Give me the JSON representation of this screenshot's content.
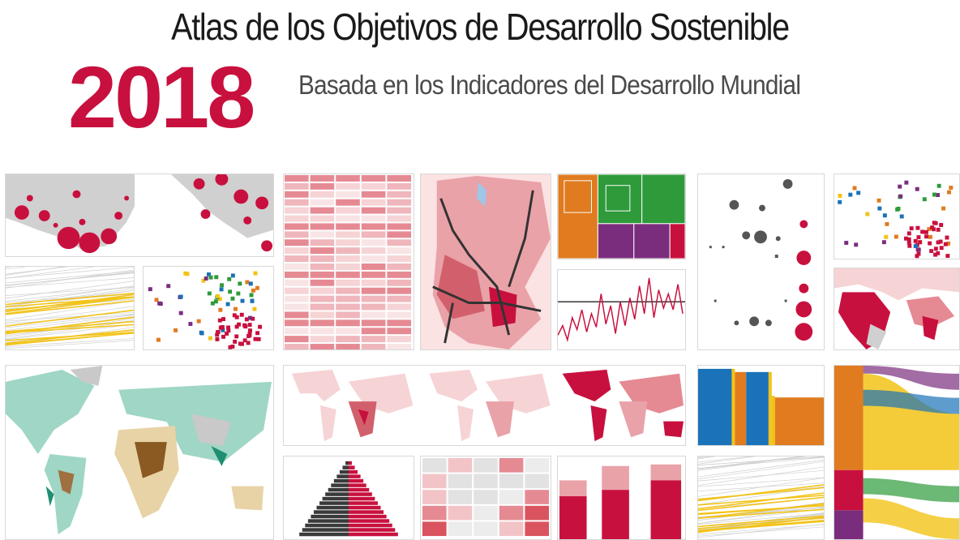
{
  "header": {
    "title": "Atlas de los Objetivos de Desarrollo Sostenible",
    "year": "2018",
    "subtitle": "Basada en los Indicadores del Desarrollo Mundial"
  },
  "colors": {
    "accent": "#c8103e",
    "title": "#1a1a1a",
    "subtitle": "#4a4a4a",
    "map_land": "#d0d0d0",
    "pink_light": "#f2c4c8",
    "pink_mid": "#e58a93",
    "orange": "#e07b20",
    "green": "#2e9a3a",
    "purple": "#7b2d7d",
    "blue": "#1a72b8",
    "yellow": "#f2c318",
    "teal": "#9fd6c5",
    "brown": "#8a5a22"
  },
  "gallery": [
    {
      "name": "bubble-map-africa-asia"
    },
    {
      "name": "horizontal-grid-chart"
    },
    {
      "name": "kenya-choropleth-map"
    },
    {
      "name": "treemap"
    },
    {
      "name": "dot-matrix-chart"
    },
    {
      "name": "colored-scatter-plot-small"
    },
    {
      "name": "yellow-line-bundle"
    },
    {
      "name": "colored-scatter-plot"
    },
    {
      "name": "red-line-chart"
    },
    {
      "name": "choropleth-africa-asia"
    },
    {
      "name": "world-terrain-map"
    },
    {
      "name": "world-choropleth-triptych"
    },
    {
      "name": "stacked-bar-chart-colored"
    },
    {
      "name": "alluvial-flow-chart"
    },
    {
      "name": "population-pyramid"
    },
    {
      "name": "heatmap-grid"
    },
    {
      "name": "red-bar-chart"
    },
    {
      "name": "yellow-line-bundle-2"
    }
  ]
}
